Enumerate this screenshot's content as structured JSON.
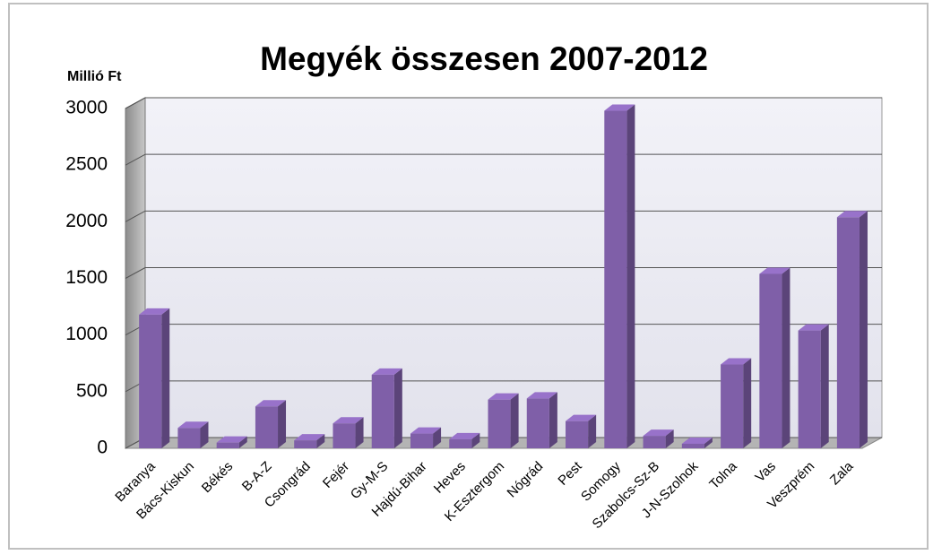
{
  "chart_data": {
    "type": "bar",
    "title": "Megyék összesen 2007-2012",
    "y_label": "Millió Ft",
    "categories": [
      "Baranya",
      "Bács-Kiskun",
      "Békés",
      "B-A-Z",
      "Csongrád",
      "Fejér",
      "Gy-M-S",
      "Hajdú-Bihar",
      "Heves",
      "K-Esztergom",
      "Nógrád",
      "Pest",
      "Somogy",
      "Szabolcs-Sz-B",
      "J-N-Szolnok",
      "Tolna",
      "Vas",
      "Veszprém",
      "Zala"
    ],
    "values": [
      1180,
      180,
      50,
      370,
      70,
      220,
      650,
      130,
      80,
      430,
      440,
      240,
      2980,
      110,
      40,
      740,
      1540,
      1040,
      2040
    ],
    "color": "#7f5fa8",
    "ylim": [
      0,
      3000
    ],
    "yticks": [
      0,
      500,
      1000,
      1500,
      2000,
      2500,
      3000
    ],
    "grid": true
  }
}
